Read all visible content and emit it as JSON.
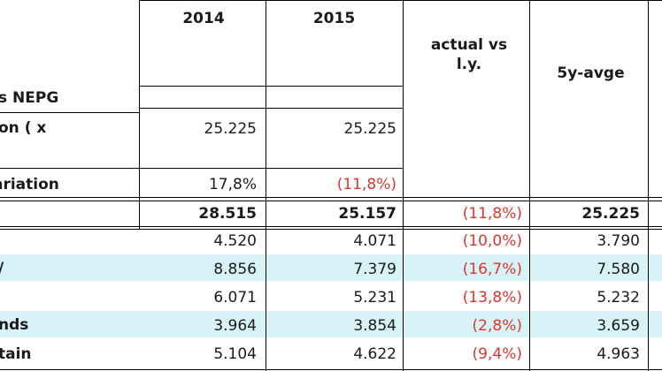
{
  "columns": {
    "y2014": "2014",
    "y2015": "2015",
    "actual_vs_ly": "actual vs\nl.y.",
    "avg5y": "5y-avge"
  },
  "rows": [
    {
      "label": "s NEPG",
      "y2014": "",
      "y2015": "",
      "actual_vs_ly": "",
      "avg5y": ""
    },
    {
      "label": "on ( x",
      "y2014": "25.225",
      "y2015": "25.225",
      "actual_vs_ly": "",
      "avg5y": ""
    },
    {
      "label": "ariation",
      "y2014": "17,8%",
      "y2015": "(11,8%)",
      "actual_vs_ly": "",
      "avg5y": ""
    },
    {
      "label": "",
      "y2014": "28.515",
      "y2015": "25.157",
      "actual_vs_ly": "(11,8%)",
      "avg5y": "25.225"
    },
    {
      "label": "",
      "y2014": "4.520",
      "y2015": "4.071",
      "actual_vs_ly": "(10,0%)",
      "avg5y": "3.790"
    },
    {
      "label": "/",
      "y2014": "8.856",
      "y2015": "7.379",
      "actual_vs_ly": "(16,7%)",
      "avg5y": "7.580"
    },
    {
      "label": "",
      "y2014": "6.071",
      "y2015": "5.231",
      "actual_vs_ly": "(13,8%)",
      "avg5y": "5.232"
    },
    {
      "label": "nds",
      "y2014": "3.964",
      "y2015": "3.854",
      "actual_vs_ly": "(2,8%)",
      "avg5y": "3.659"
    },
    {
      "label": "tain",
      "y2014": "5.104",
      "y2015": "4.622",
      "actual_vs_ly": "(9,4%)",
      "avg5y": "4.963"
    }
  ],
  "colors": {
    "negative": "#e0342f",
    "stripe": "#d8f3f8",
    "border": "#000000"
  }
}
